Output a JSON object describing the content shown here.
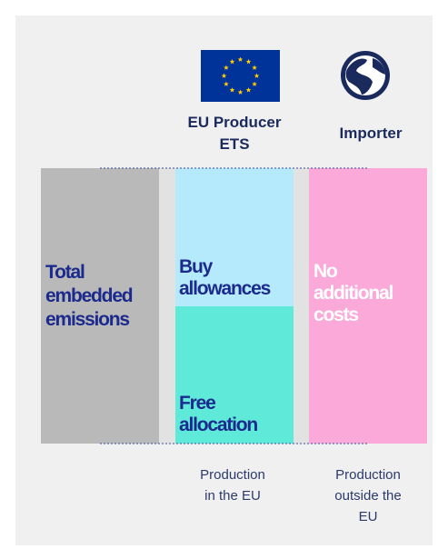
{
  "header": {
    "producer": [
      "EU Producer",
      "ETS"
    ],
    "importer": "Importer"
  },
  "columns": {
    "total": [
      "Total",
      "embedded",
      "emissions"
    ],
    "buy": [
      "Buy",
      "allowances"
    ],
    "free": [
      "Free",
      "allocation"
    ],
    "none": [
      "No",
      "additional",
      "costs"
    ]
  },
  "footer": {
    "producer": [
      "Production",
      "in the EU"
    ],
    "importer": [
      "Production",
      "outside the",
      "EU"
    ]
  }
}
